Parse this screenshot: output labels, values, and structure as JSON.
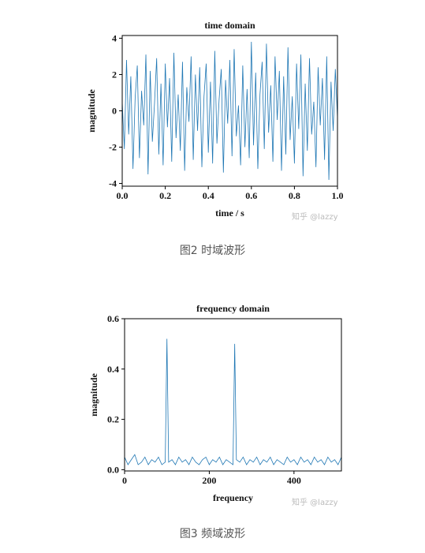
{
  "chart_data": [
    {
      "type": "line",
      "title": "time domain",
      "xlabel": "time / s",
      "ylabel": "magnitude",
      "x": [
        0,
        0.01,
        0.02,
        0.03,
        0.04,
        0.05,
        0.06,
        0.07,
        0.08,
        0.09,
        0.1,
        0.11,
        0.12,
        0.13,
        0.14,
        0.15,
        0.16,
        0.17,
        0.18,
        0.19,
        0.2,
        0.21,
        0.22,
        0.23,
        0.24,
        0.25,
        0.26,
        0.27,
        0.28,
        0.29,
        0.3,
        0.31,
        0.32,
        0.33,
        0.34,
        0.35,
        0.36,
        0.37,
        0.38,
        0.39,
        0.4,
        0.41,
        0.42,
        0.43,
        0.44,
        0.45,
        0.46,
        0.47,
        0.48,
        0.49,
        0.5,
        0.51,
        0.52,
        0.53,
        0.54,
        0.55,
        0.56,
        0.57,
        0.58,
        0.59,
        0.6,
        0.61,
        0.62,
        0.63,
        0.64,
        0.65,
        0.66,
        0.67,
        0.68,
        0.69,
        0.7,
        0.71,
        0.72,
        0.73,
        0.74,
        0.75,
        0.76,
        0.77,
        0.78,
        0.79,
        0.8,
        0.81,
        0.82,
        0.83,
        0.84,
        0.85,
        0.86,
        0.87,
        0.88,
        0.89,
        0.9,
        0.91,
        0.92,
        0.93,
        0.94,
        0.95,
        0.96,
        0.97,
        0.98,
        0.99,
        1.0
      ],
      "series": [
        {
          "color": "#1f77b4",
          "values": [
            0.5,
            -2.1,
            2.8,
            -1.3,
            1.9,
            -3.2,
            0.7,
            2.5,
            -2.6,
            1.1,
            -0.8,
            3.1,
            -3.5,
            2.2,
            -1.7,
            0.4,
            2.9,
            -2.4,
            1.5,
            -3.0,
            2.6,
            -0.9,
            1.8,
            -2.8,
            3.2,
            -1.5,
            0.9,
            -2.2,
            2.7,
            -3.3,
            1.3,
            -0.6,
            3.0,
            -2.7,
            2.0,
            -1.1,
            2.4,
            -3.1,
            0.8,
            2.6,
            -2.3,
            1.6,
            -2.9,
            3.3,
            -1.8,
            0.6,
            2.3,
            -3.4,
            1.7,
            -0.7,
            2.8,
            -2.5,
            3.4,
            -1.4,
            0.3,
            -3.0,
            2.5,
            -2.0,
            1.2,
            -2.6,
            3.8,
            -1.9,
            2.1,
            -3.2,
            0.9,
            2.7,
            -2.1,
            3.7,
            -1.2,
            1.4,
            -2.8,
            3.0,
            -0.5,
            2.2,
            -3.3,
            1.9,
            -2.4,
            3.5,
            -1.6,
            0.8,
            -2.9,
            2.6,
            -1.0,
            3.1,
            -3.6,
            1.5,
            -2.2,
            2.9,
            -1.3,
            0.5,
            -3.1,
            2.4,
            -0.8,
            1.8,
            -2.7,
            3.0,
            -3.8,
            1.6,
            -1.1,
            2.3,
            -0.4
          ]
        }
      ],
      "xlim": [
        0,
        1
      ],
      "xticks": [
        {
          "value": 0,
          "label": "0.0"
        },
        {
          "value": 0.2,
          "label": "0.2"
        },
        {
          "value": 0.4,
          "label": "0.4"
        },
        {
          "value": 0.6,
          "label": "0.6"
        },
        {
          "value": 0.8,
          "label": "0.8"
        },
        {
          "value": 1,
          "label": "1.0"
        }
      ],
      "ylim": [
        -4.15,
        4.15
      ],
      "yticks": [
        -4,
        -2,
        0,
        2,
        4
      ]
    },
    {
      "type": "line",
      "title": "frequency domain",
      "xlabel": "frequency",
      "ylabel": "magnitude",
      "x": [
        0,
        8,
        16,
        24,
        32,
        40,
        48,
        56,
        64,
        72,
        80,
        88,
        96,
        100,
        104,
        112,
        120,
        128,
        136,
        144,
        152,
        160,
        168,
        176,
        184,
        192,
        200,
        208,
        216,
        224,
        232,
        240,
        248,
        256,
        260,
        264,
        272,
        280,
        288,
        296,
        304,
        312,
        320,
        328,
        336,
        344,
        352,
        360,
        368,
        376,
        384,
        392,
        400,
        408,
        416,
        424,
        432,
        440,
        448,
        456,
        464,
        472,
        480,
        488,
        496,
        504,
        512
      ],
      "series": [
        {
          "color": "#1f77b4",
          "values": [
            0.05,
            0.02,
            0.04,
            0.06,
            0.02,
            0.03,
            0.05,
            0.02,
            0.04,
            0.03,
            0.05,
            0.02,
            0.03,
            0.52,
            0.03,
            0.04,
            0.02,
            0.05,
            0.03,
            0.04,
            0.02,
            0.05,
            0.03,
            0.02,
            0.04,
            0.05,
            0.02,
            0.04,
            0.03,
            0.05,
            0.02,
            0.04,
            0.03,
            0.02,
            0.5,
            0.04,
            0.03,
            0.05,
            0.02,
            0.04,
            0.03,
            0.05,
            0.02,
            0.04,
            0.03,
            0.05,
            0.02,
            0.04,
            0.03,
            0.02,
            0.05,
            0.03,
            0.04,
            0.02,
            0.05,
            0.03,
            0.04,
            0.02,
            0.05,
            0.03,
            0.04,
            0.02,
            0.05,
            0.03,
            0.04,
            0.02,
            0.05
          ]
        }
      ],
      "xlim": [
        0,
        512
      ],
      "xticks": [
        0,
        200,
        400
      ],
      "ylim": [
        -0.005,
        0.6
      ],
      "yticks": [
        {
          "value": 0,
          "label": "0.0"
        },
        {
          "value": 0.2,
          "label": "0.2"
        },
        {
          "value": 0.4,
          "label": "0.4"
        },
        {
          "value": 0.6,
          "label": "0.6"
        }
      ]
    }
  ],
  "captions": [
    "图2 时域波形",
    "图3 频域波形"
  ],
  "watermarks": [
    "知乎 @lazzy",
    "知乎 @lazzy"
  ]
}
